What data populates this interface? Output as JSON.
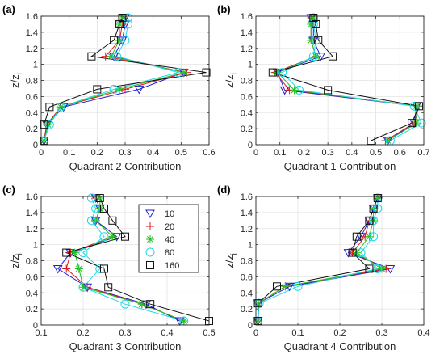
{
  "legend": {
    "entries": [
      {
        "label": "10",
        "color": "#1f1fd6",
        "marker": "triangle-down"
      },
      {
        "label": "20",
        "color": "#e01a1a",
        "marker": "plus"
      },
      {
        "label": "40",
        "color": "#22c222",
        "marker": "asterisk"
      },
      {
        "label": "80",
        "color": "#22d8e8",
        "marker": "circle"
      },
      {
        "label": "160",
        "color": "#111111",
        "marker": "square"
      }
    ]
  },
  "chart_data": [
    {
      "type": "line",
      "panel_label": "(a)",
      "xlabel": "Quadrant 2 Contribution",
      "ylabel": "z/z",
      "ylabel_sub": "i",
      "xlim": [
        0,
        0.6
      ],
      "ylim": [
        0,
        1.6
      ],
      "xticks": [
        0,
        0.1,
        0.2,
        0.3,
        0.4,
        0.5,
        0.6
      ],
      "xtick_labels": [
        "0",
        "0.1",
        "0.2",
        "0.3",
        "0.4",
        "0.5",
        "0.6"
      ],
      "yticks": [
        0,
        0.2,
        0.4,
        0.6,
        0.8,
        1.0,
        1.2,
        1.4,
        1.6
      ],
      "ytick_labels": [
        "0",
        "0.2",
        "0.4",
        "0.6",
        "0.8",
        "1",
        "1.2",
        "1.4",
        "1.6"
      ],
      "y": [
        0.05,
        0.25,
        0.47,
        0.69,
        0.9,
        1.1,
        1.3,
        1.5,
        1.58
      ],
      "series": [
        {
          "name": "10",
          "x": [
            0.01,
            0.02,
            0.08,
            0.35,
            0.51,
            0.26,
            0.29,
            0.3,
            0.3
          ]
        },
        {
          "name": "20",
          "x": [
            0.01,
            0.02,
            0.07,
            0.3,
            0.52,
            0.23,
            0.28,
            0.29,
            0.29
          ]
        },
        {
          "name": "40",
          "x": [
            0.01,
            0.025,
            0.07,
            0.28,
            0.51,
            0.25,
            0.28,
            0.28,
            0.29
          ]
        },
        {
          "name": "80",
          "x": [
            0.01,
            0.03,
            0.07,
            0.26,
            0.49,
            0.27,
            0.3,
            0.31,
            0.31
          ]
        },
        {
          "name": "160",
          "x": [
            0.01,
            0.01,
            0.03,
            0.2,
            0.59,
            0.18,
            0.26,
            0.28,
            0.29
          ]
        }
      ]
    },
    {
      "type": "line",
      "panel_label": "(b)",
      "xlabel": "Quadrant 1 Contribution",
      "ylabel": "z/z",
      "ylabel_sub": "i",
      "xlim": [
        0,
        0.7
      ],
      "ylim": [
        0,
        1.6
      ],
      "xticks": [
        0,
        0.1,
        0.2,
        0.3,
        0.4,
        0.5,
        0.6,
        0.7
      ],
      "xtick_labels": [
        "0",
        "0.1",
        "0.2",
        "0.3",
        "0.4",
        "0.5",
        "0.6",
        "0.7"
      ],
      "yticks": [
        0,
        0.2,
        0.4,
        0.6,
        0.8,
        1.0,
        1.2,
        1.4,
        1.6
      ],
      "ytick_labels": [
        "0",
        "0.2",
        "0.4",
        "0.6",
        "0.8",
        "1",
        "1.2",
        "1.4",
        "1.6"
      ],
      "y": [
        0.05,
        0.27,
        0.48,
        0.68,
        0.9,
        1.1,
        1.3,
        1.5,
        1.58
      ],
      "series": [
        {
          "name": "10",
          "x": [
            0.55,
            0.66,
            0.67,
            0.12,
            0.09,
            0.27,
            0.24,
            0.24,
            0.23
          ]
        },
        {
          "name": "20",
          "x": [
            0.54,
            0.66,
            0.68,
            0.14,
            0.08,
            0.25,
            0.23,
            0.23,
            0.23
          ]
        },
        {
          "name": "40",
          "x": [
            0.55,
            0.67,
            0.67,
            0.16,
            0.09,
            0.25,
            0.23,
            0.23,
            0.24
          ]
        },
        {
          "name": "80",
          "x": [
            0.56,
            0.69,
            0.66,
            0.18,
            0.11,
            0.24,
            0.25,
            0.24,
            0.24
          ]
        },
        {
          "name": "160",
          "x": [
            0.48,
            0.65,
            0.68,
            0.3,
            0.07,
            0.32,
            0.26,
            0.25,
            0.24
          ]
        }
      ]
    },
    {
      "type": "line",
      "panel_label": "(c)",
      "xlabel": "Quadrant 3 Contribution",
      "ylabel": "z/z",
      "ylabel_sub": "i",
      "xlim": [
        0.1,
        0.5
      ],
      "ylim": [
        0,
        1.6
      ],
      "xticks": [
        0.1,
        0.2,
        0.3,
        0.4,
        0.5
      ],
      "xtick_labels": [
        "0.1",
        "0.2",
        "0.3",
        "0.4",
        "0.5"
      ],
      "yticks": [
        0,
        0.2,
        0.4,
        0.6,
        0.8,
        1.0,
        1.2,
        1.4,
        1.6
      ],
      "ytick_labels": [
        "0",
        "0.2",
        "0.4",
        "0.6",
        "0.8",
        "1",
        "1.2",
        "1.4",
        "1.6"
      ],
      "y": [
        0.05,
        0.26,
        0.47,
        0.7,
        0.9,
        1.1,
        1.3,
        1.45,
        1.58
      ],
      "series": [
        {
          "name": "10",
          "x": [
            0.43,
            0.35,
            0.21,
            0.14,
            0.17,
            0.28,
            0.23,
            0.24,
            0.23
          ]
        },
        {
          "name": "20",
          "x": [
            0.44,
            0.34,
            0.21,
            0.16,
            0.17,
            0.27,
            0.23,
            0.24,
            0.23
          ]
        },
        {
          "name": "40",
          "x": [
            0.44,
            0.34,
            0.2,
            0.19,
            0.18,
            0.27,
            0.23,
            0.24,
            0.24
          ]
        },
        {
          "name": "80",
          "x": [
            0.44,
            0.3,
            0.2,
            0.24,
            0.2,
            0.25,
            0.22,
            0.23,
            0.22
          ]
        },
        {
          "name": "160",
          "x": [
            0.5,
            0.36,
            0.26,
            0.25,
            0.16,
            0.3,
            0.27,
            0.25,
            0.24
          ]
        }
      ]
    },
    {
      "type": "line",
      "panel_label": "(d)",
      "xlabel": "Quadrant 4 Contribution",
      "ylabel": "z/z",
      "ylabel_sub": "i",
      "xlim": [
        0,
        0.4
      ],
      "ylim": [
        0,
        1.6
      ],
      "xticks": [
        0,
        0.1,
        0.2,
        0.3,
        0.4
      ],
      "xtick_labels": [
        "0",
        "0.1",
        "0.2",
        "0.3",
        "0.4"
      ],
      "yticks": [
        0,
        0.2,
        0.4,
        0.6,
        0.8,
        1.0,
        1.2,
        1.4,
        1.6
      ],
      "ytick_labels": [
        "0",
        "0.2",
        "0.4",
        "0.6",
        "0.8",
        "1",
        "1.2",
        "1.4",
        "1.6"
      ],
      "y": [
        0.05,
        0.27,
        0.48,
        0.7,
        0.9,
        1.1,
        1.3,
        1.45,
        1.58
      ],
      "series": [
        {
          "name": "10",
          "x": [
            0.005,
            0.005,
            0.08,
            0.32,
            0.22,
            0.25,
            0.27,
            0.28,
            0.29
          ]
        },
        {
          "name": "20",
          "x": [
            0.005,
            0.005,
            0.07,
            0.31,
            0.23,
            0.26,
            0.27,
            0.28,
            0.29
          ]
        },
        {
          "name": "40",
          "x": [
            0.005,
            0.006,
            0.07,
            0.3,
            0.24,
            0.27,
            0.28,
            0.28,
            0.29
          ]
        },
        {
          "name": "80",
          "x": [
            0.005,
            0.008,
            0.1,
            0.29,
            0.25,
            0.28,
            0.28,
            0.29,
            0.29
          ]
        },
        {
          "name": "160",
          "x": [
            0.005,
            0.005,
            0.05,
            0.27,
            0.23,
            0.24,
            0.27,
            0.28,
            0.29
          ]
        }
      ]
    }
  ]
}
